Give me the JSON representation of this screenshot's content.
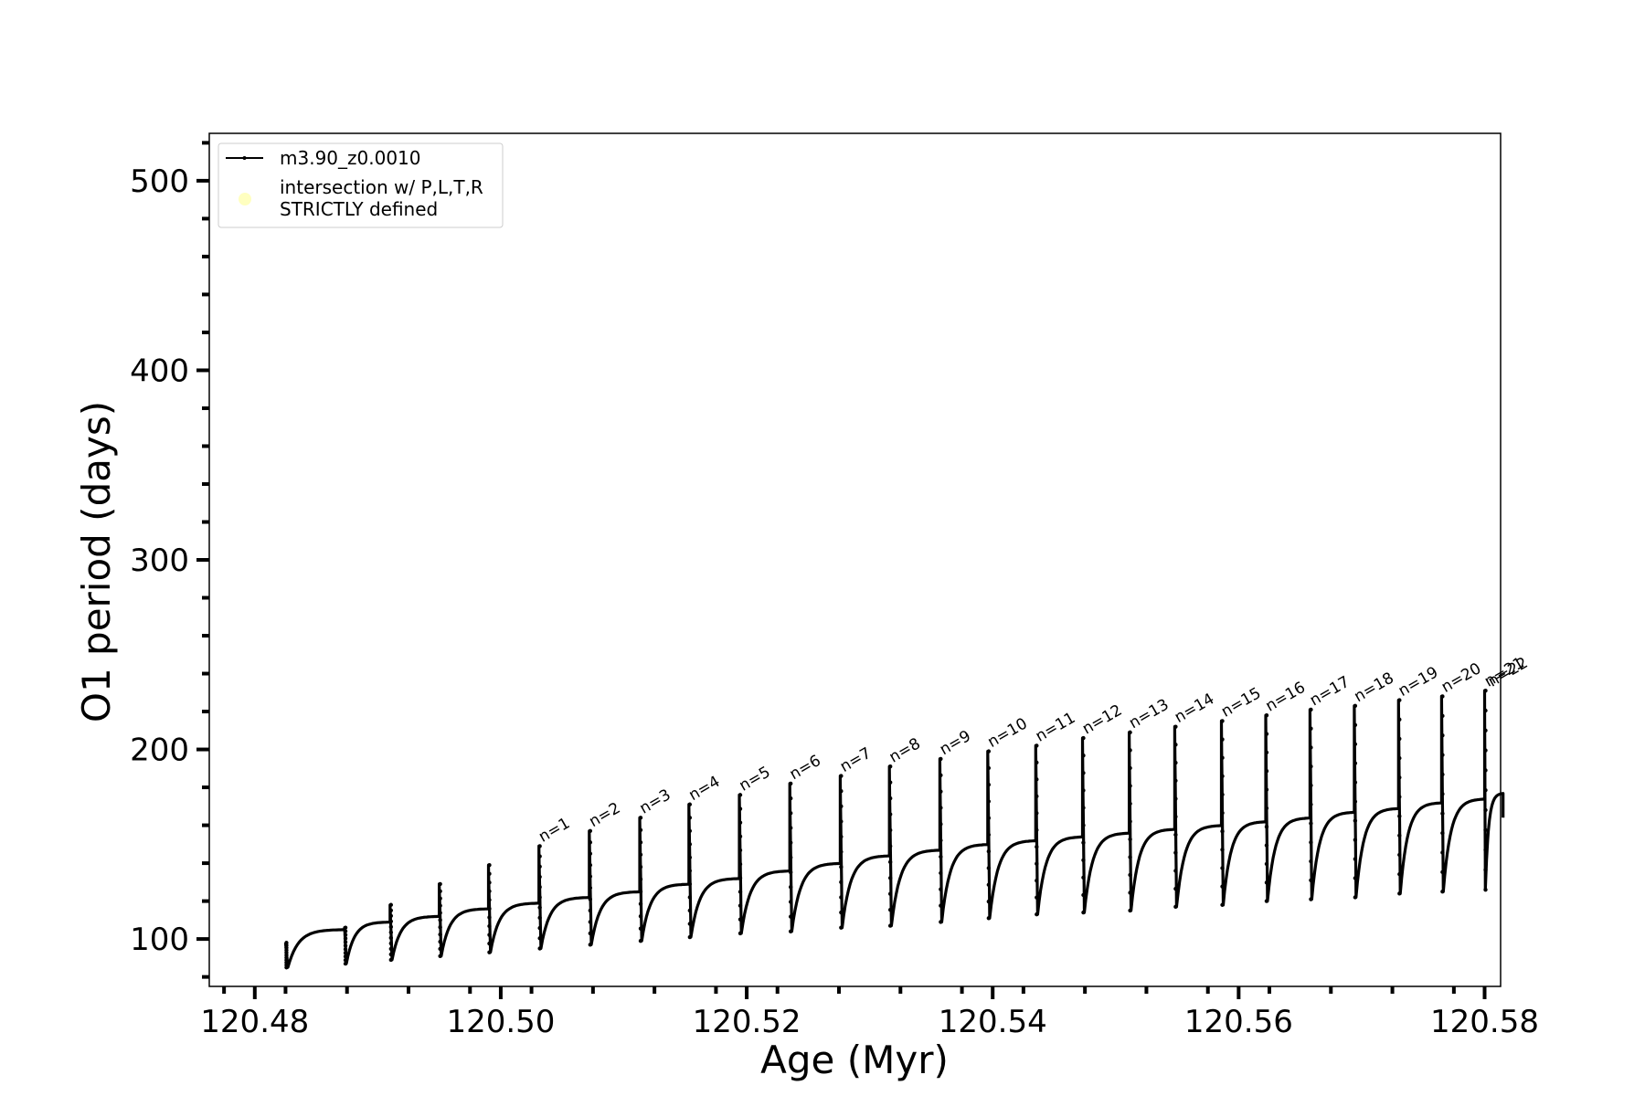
{
  "chart_data": {
    "type": "line",
    "title": "",
    "xlabel": "Age (Myr)",
    "ylabel": "O1 period (days)",
    "xlim": [
      120.4763,
      120.5813
    ],
    "ylim": [
      75,
      525
    ],
    "x_ticks": [
      120.48,
      120.5,
      120.52,
      120.54,
      120.56,
      120.58
    ],
    "x_tick_labels": [
      "120.48",
      "120.50",
      "120.52",
      "120.54",
      "120.56",
      "120.58"
    ],
    "y_ticks": [
      100,
      200,
      300,
      400,
      500
    ],
    "y_tick_labels": [
      "100",
      "200",
      "300",
      "400",
      "500"
    ],
    "grid": false,
    "legend": {
      "placement": "top-left",
      "entries": [
        {
          "label": "m3.90_z0.0010",
          "marker": "line-with-dots",
          "color": "#000000"
        },
        {
          "label_line1": "intersection w/ P,L,T,R",
          "label_line2": "STRICTLY defined",
          "marker": "circle",
          "color": "#ffffc0"
        }
      ]
    },
    "series": [
      {
        "name": "m3.90_z0.0010",
        "color": "#000000",
        "cycles": [
          {
            "x_start": 120.4825,
            "peak": 98,
            "min": 85,
            "plateau": 105
          },
          {
            "x_start": 120.4873,
            "peak": 106,
            "min": 87,
            "plateau": 109
          },
          {
            "x_start": 120.491,
            "peak": 118,
            "min": 89,
            "plateau": 112
          },
          {
            "x_start": 120.495,
            "peak": 129,
            "min": 91,
            "plateau": 116
          },
          {
            "x_start": 120.499,
            "peak": 139,
            "min": 93,
            "plateau": 119
          },
          {
            "x_start": 120.5031,
            "peak": 149,
            "min": 95,
            "plateau": 122
          },
          {
            "x_start": 120.5072,
            "peak": 157,
            "min": 97,
            "plateau": 125
          },
          {
            "x_start": 120.5113,
            "peak": 164,
            "min": 99,
            "plateau": 129
          },
          {
            "x_start": 120.5153,
            "peak": 171,
            "min": 101,
            "plateau": 132
          },
          {
            "x_start": 120.5194,
            "peak": 176,
            "min": 103,
            "plateau": 136
          },
          {
            "x_start": 120.5235,
            "peak": 182,
            "min": 104,
            "plateau": 140
          },
          {
            "x_start": 120.5276,
            "peak": 186,
            "min": 106,
            "plateau": 144
          },
          {
            "x_start": 120.5316,
            "peak": 191,
            "min": 107,
            "plateau": 147
          },
          {
            "x_start": 120.5357,
            "peak": 195,
            "min": 109,
            "plateau": 150
          },
          {
            "x_start": 120.5396,
            "peak": 199,
            "min": 111,
            "plateau": 152
          },
          {
            "x_start": 120.5435,
            "peak": 202,
            "min": 113,
            "plateau": 154
          },
          {
            "x_start": 120.5473,
            "peak": 206,
            "min": 114,
            "plateau": 156
          },
          {
            "x_start": 120.5511,
            "peak": 209,
            "min": 115,
            "plateau": 158
          },
          {
            "x_start": 120.5548,
            "peak": 212,
            "min": 117,
            "plateau": 160
          },
          {
            "x_start": 120.5586,
            "peak": 215,
            "min": 118,
            "plateau": 162
          },
          {
            "x_start": 120.5622,
            "peak": 218,
            "min": 120,
            "plateau": 164
          },
          {
            "x_start": 120.5658,
            "peak": 221,
            "min": 121,
            "plateau": 167
          },
          {
            "x_start": 120.5694,
            "peak": 223,
            "min": 122,
            "plateau": 169
          },
          {
            "x_start": 120.573,
            "peak": 226,
            "min": 124,
            "plateau": 172
          },
          {
            "x_start": 120.5765,
            "peak": 228,
            "min": 125,
            "plateau": 174
          },
          {
            "x_start": 120.58,
            "peak": 231,
            "min": 126,
            "plateau": 177
          }
        ],
        "end": {
          "x": 120.5815,
          "y": 164,
          "min": 128
        }
      }
    ],
    "annotations": [
      {
        "text": "n=1",
        "x": 120.5031,
        "y": 149
      },
      {
        "text": "n=2",
        "x": 120.5072,
        "y": 157
      },
      {
        "text": "n=3",
        "x": 120.5113,
        "y": 164
      },
      {
        "text": "n=4",
        "x": 120.5153,
        "y": 171
      },
      {
        "text": "n=5",
        "x": 120.5194,
        "y": 176
      },
      {
        "text": "n=6",
        "x": 120.5235,
        "y": 182
      },
      {
        "text": "n=7",
        "x": 120.5276,
        "y": 186
      },
      {
        "text": "n=8",
        "x": 120.5316,
        "y": 191
      },
      {
        "text": "n=9",
        "x": 120.5357,
        "y": 195
      },
      {
        "text": "n=10",
        "x": 120.5396,
        "y": 199
      },
      {
        "text": "n=11",
        "x": 120.5435,
        "y": 202
      },
      {
        "text": "n=12",
        "x": 120.5473,
        "y": 206
      },
      {
        "text": "n=13",
        "x": 120.5511,
        "y": 209
      },
      {
        "text": "n=14",
        "x": 120.5548,
        "y": 212
      },
      {
        "text": "n=15",
        "x": 120.5586,
        "y": 215
      },
      {
        "text": "n=16",
        "x": 120.5622,
        "y": 218
      },
      {
        "text": "n=17",
        "x": 120.5658,
        "y": 221
      },
      {
        "text": "n=18",
        "x": 120.5694,
        "y": 223
      },
      {
        "text": "n=19",
        "x": 120.573,
        "y": 226
      },
      {
        "text": "n=20",
        "x": 120.5765,
        "y": 228
      },
      {
        "text": "n=21",
        "x": 120.58,
        "y": 231
      },
      {
        "text": "n=22",
        "x": 120.58,
        "y": 231
      }
    ]
  }
}
